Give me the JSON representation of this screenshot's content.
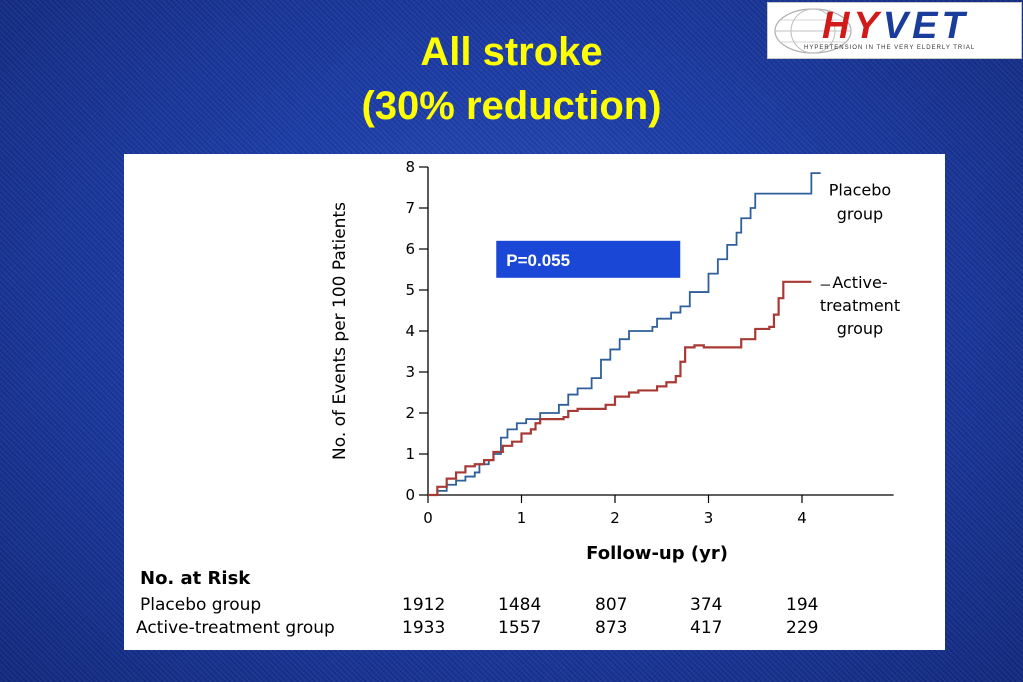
{
  "slide": {
    "title_line1": "All stroke",
    "title_line2": "(30% reduction)"
  },
  "logo": {
    "name_part1": "HY",
    "name_part2": "VET",
    "subtitle": "HYPERTENSION IN THE VERY ELDERLY TRIAL"
  },
  "annotation": {
    "p_value": "P=0.055",
    "box_color": "#1a47d6"
  },
  "chart_data": {
    "type": "line",
    "xlabel": "Follow-up (yr)",
    "ylabel": "No. of Events per 100 Patients",
    "xlim": [
      0,
      5
    ],
    "ylim": [
      0,
      8
    ],
    "xticks": [
      0,
      1,
      2,
      3,
      4
    ],
    "yticks": [
      0,
      1,
      2,
      3,
      4,
      5,
      6,
      7,
      8
    ],
    "series": [
      {
        "name": "Placebo group",
        "label_lines": [
          "Placebo",
          "group"
        ],
        "color": "#2f5f9a",
        "points": [
          [
            0,
            0
          ],
          [
            0.1,
            0.1
          ],
          [
            0.2,
            0.25
          ],
          [
            0.3,
            0.35
          ],
          [
            0.4,
            0.45
          ],
          [
            0.5,
            0.55
          ],
          [
            0.55,
            0.75
          ],
          [
            0.65,
            0.85
          ],
          [
            0.7,
            1.0
          ],
          [
            0.78,
            1.4
          ],
          [
            0.85,
            1.6
          ],
          [
            0.95,
            1.75
          ],
          [
            1.05,
            1.85
          ],
          [
            1.2,
            2.0
          ],
          [
            1.4,
            2.2
          ],
          [
            1.5,
            2.45
          ],
          [
            1.6,
            2.6
          ],
          [
            1.75,
            2.85
          ],
          [
            1.85,
            3.3
          ],
          [
            1.95,
            3.55
          ],
          [
            2.05,
            3.8
          ],
          [
            2.15,
            4.0
          ],
          [
            2.4,
            4.1
          ],
          [
            2.45,
            4.3
          ],
          [
            2.6,
            4.45
          ],
          [
            2.7,
            4.6
          ],
          [
            2.8,
            4.95
          ],
          [
            3.0,
            5.4
          ],
          [
            3.1,
            5.75
          ],
          [
            3.2,
            6.1
          ],
          [
            3.3,
            6.4
          ],
          [
            3.35,
            6.75
          ],
          [
            3.45,
            7.0
          ],
          [
            3.5,
            7.35
          ],
          [
            3.6,
            7.35
          ],
          [
            4.05,
            7.35
          ],
          [
            4.1,
            7.85
          ],
          [
            4.2,
            7.85
          ]
        ]
      },
      {
        "name": "Active-treatment group",
        "label_lines": [
          "Active-",
          "treatment",
          "group"
        ],
        "color": "#a83a35",
        "points": [
          [
            0,
            0
          ],
          [
            0.1,
            0.2
          ],
          [
            0.2,
            0.4
          ],
          [
            0.3,
            0.55
          ],
          [
            0.4,
            0.7
          ],
          [
            0.5,
            0.75
          ],
          [
            0.6,
            0.85
          ],
          [
            0.7,
            1.05
          ],
          [
            0.8,
            1.2
          ],
          [
            0.9,
            1.3
          ],
          [
            1.0,
            1.5
          ],
          [
            1.1,
            1.6
          ],
          [
            1.15,
            1.75
          ],
          [
            1.2,
            1.85
          ],
          [
            1.45,
            1.9
          ],
          [
            1.5,
            2.05
          ],
          [
            1.6,
            2.1
          ],
          [
            1.9,
            2.2
          ],
          [
            2.0,
            2.4
          ],
          [
            2.15,
            2.5
          ],
          [
            2.25,
            2.55
          ],
          [
            2.45,
            2.65
          ],
          [
            2.55,
            2.75
          ],
          [
            2.65,
            2.9
          ],
          [
            2.7,
            3.25
          ],
          [
            2.75,
            3.6
          ],
          [
            2.85,
            3.65
          ],
          [
            2.95,
            3.6
          ],
          [
            3.35,
            3.8
          ],
          [
            3.5,
            4.05
          ],
          [
            3.65,
            4.1
          ],
          [
            3.7,
            4.4
          ],
          [
            3.75,
            4.8
          ],
          [
            3.8,
            5.2
          ],
          [
            4.1,
            5.2
          ]
        ]
      }
    ],
    "risk_table": {
      "title": "No. at Risk",
      "rows": [
        {
          "label": "Placebo group",
          "values": [
            "1912",
            "1484",
            "807",
            "374",
            "194"
          ]
        },
        {
          "label": "Active-treatment group",
          "values": [
            "1933",
            "1557",
            "873",
            "417",
            "229"
          ]
        }
      ]
    }
  }
}
